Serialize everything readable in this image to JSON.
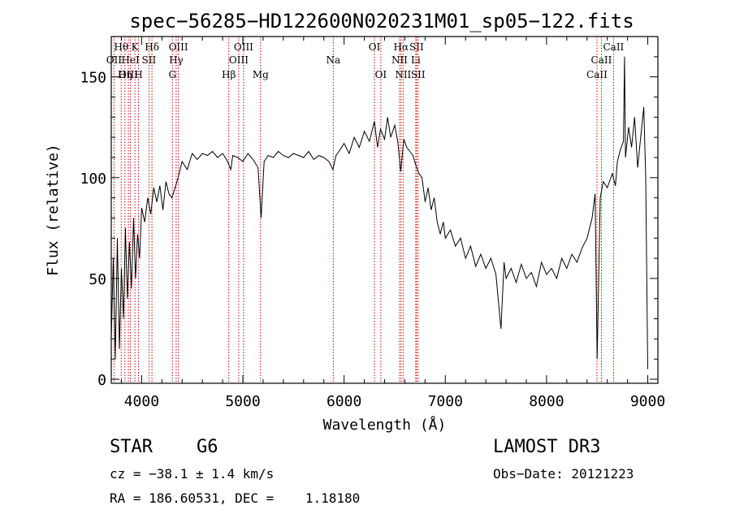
{
  "chart_data": {
    "type": "line",
    "title": "spec−56285−HD122600N020231M01_sp05−122.fits",
    "xlabel": "Wavelength (Å)",
    "ylabel": "Flux (relative)",
    "xlim": [
      3700,
      9100
    ],
    "ylim": [
      -2,
      170
    ],
    "x_ticks": [
      4000,
      5000,
      6000,
      7000,
      8000,
      9000
    ],
    "y_ticks": [
      0,
      50,
      100,
      150
    ],
    "grid": false,
    "line_color": "#000000",
    "marker_color": "#cc0000",
    "series": [
      {
        "name": "flux",
        "points": [
          [
            3700,
            20
          ],
          [
            3720,
            60
          ],
          [
            3740,
            10
          ],
          [
            3760,
            70
          ],
          [
            3780,
            15
          ],
          [
            3800,
            55
          ],
          [
            3820,
            30
          ],
          [
            3840,
            75
          ],
          [
            3860,
            40
          ],
          [
            3880,
            68
          ],
          [
            3900,
            45
          ],
          [
            3920,
            80
          ],
          [
            3940,
            50
          ],
          [
            3960,
            72
          ],
          [
            3980,
            60
          ],
          [
            4000,
            85
          ],
          [
            4030,
            78
          ],
          [
            4060,
            90
          ],
          [
            4090,
            82
          ],
          [
            4120,
            95
          ],
          [
            4150,
            88
          ],
          [
            4180,
            96
          ],
          [
            4210,
            84
          ],
          [
            4240,
            98
          ],
          [
            4270,
            92
          ],
          [
            4300,
            90
          ],
          [
            4330,
            95
          ],
          [
            4360,
            100
          ],
          [
            4400,
            108
          ],
          [
            4450,
            104
          ],
          [
            4500,
            112
          ],
          [
            4550,
            109
          ],
          [
            4600,
            112
          ],
          [
            4650,
            111
          ],
          [
            4700,
            113
          ],
          [
            4750,
            110
          ],
          [
            4800,
            112
          ],
          [
            4850,
            108
          ],
          [
            4880,
            104
          ],
          [
            4900,
            111
          ],
          [
            4950,
            110
          ],
          [
            5000,
            108
          ],
          [
            5050,
            112
          ],
          [
            5100,
            109
          ],
          [
            5150,
            105
          ],
          [
            5180,
            80
          ],
          [
            5210,
            108
          ],
          [
            5250,
            111
          ],
          [
            5300,
            110
          ],
          [
            5350,
            113
          ],
          [
            5400,
            111
          ],
          [
            5450,
            110
          ],
          [
            5500,
            112
          ],
          [
            5550,
            111
          ],
          [
            5600,
            110
          ],
          [
            5650,
            113
          ],
          [
            5700,
            109
          ],
          [
            5750,
            111
          ],
          [
            5800,
            110
          ],
          [
            5850,
            108
          ],
          [
            5890,
            104
          ],
          [
            5920,
            111
          ],
          [
            5950,
            113
          ],
          [
            6000,
            117
          ],
          [
            6050,
            112
          ],
          [
            6100,
            120
          ],
          [
            6150,
            115
          ],
          [
            6200,
            123
          ],
          [
            6250,
            118
          ],
          [
            6300,
            128
          ],
          [
            6330,
            115
          ],
          [
            6360,
            124
          ],
          [
            6400,
            119
          ],
          [
            6430,
            130
          ],
          [
            6460,
            120
          ],
          [
            6500,
            126
          ],
          [
            6530,
            118
          ],
          [
            6560,
            103
          ],
          [
            6590,
            119
          ],
          [
            6620,
            115
          ],
          [
            6650,
            113
          ],
          [
            6680,
            111
          ],
          [
            6710,
            106
          ],
          [
            6740,
            102
          ],
          [
            6770,
            100
          ],
          [
            6800,
            88
          ],
          [
            6830,
            95
          ],
          [
            6860,
            84
          ],
          [
            6890,
            90
          ],
          [
            6920,
            78
          ],
          [
            6950,
            72
          ],
          [
            6980,
            78
          ],
          [
            7000,
            70
          ],
          [
            7050,
            74
          ],
          [
            7100,
            66
          ],
          [
            7150,
            70
          ],
          [
            7200,
            60
          ],
          [
            7250,
            66
          ],
          [
            7300,
            56
          ],
          [
            7350,
            62
          ],
          [
            7400,
            55
          ],
          [
            7450,
            60
          ],
          [
            7500,
            52
          ],
          [
            7550,
            25
          ],
          [
            7580,
            58
          ],
          [
            7600,
            50
          ],
          [
            7650,
            55
          ],
          [
            7700,
            48
          ],
          [
            7750,
            57
          ],
          [
            7800,
            50
          ],
          [
            7850,
            53
          ],
          [
            7900,
            46
          ],
          [
            7950,
            58
          ],
          [
            8000,
            52
          ],
          [
            8050,
            55
          ],
          [
            8100,
            50
          ],
          [
            8150,
            60
          ],
          [
            8200,
            55
          ],
          [
            8250,
            62
          ],
          [
            8300,
            58
          ],
          [
            8350,
            65
          ],
          [
            8400,
            70
          ],
          [
            8450,
            80
          ],
          [
            8480,
            92
          ],
          [
            8500,
            10
          ],
          [
            8530,
            90
          ],
          [
            8560,
            98
          ],
          [
            8600,
            95
          ],
          [
            8650,
            102
          ],
          [
            8680,
            96
          ],
          [
            8700,
            108
          ],
          [
            8730,
            114
          ],
          [
            8760,
            118
          ],
          [
            8770,
            160
          ],
          [
            8780,
            110
          ],
          [
            8810,
            125
          ],
          [
            8840,
            115
          ],
          [
            8870,
            130
          ],
          [
            8900,
            105
          ],
          [
            8930,
            120
          ],
          [
            8960,
            135
          ],
          [
            8980,
            100
          ],
          [
            9000,
            5
          ]
        ]
      }
    ],
    "line_markers": [
      {
        "label": "Hθ",
        "x": 3798,
        "row": 1
      },
      {
        "label": "OII",
        "x": 3727,
        "row": 2
      },
      {
        "label": "OIII",
        "x": 3869,
        "row": 3
      },
      {
        "label": "K",
        "x": 3934,
        "row": 1
      },
      {
        "label": "HeI",
        "x": 3889,
        "row": 2
      },
      {
        "label": "Hη",
        "x": 3835,
        "row": 3
      },
      {
        "label": "SII",
        "x": 4072,
        "row": 2
      },
      {
        "label": "H",
        "x": 3969,
        "row": 3
      },
      {
        "label": "Hδ",
        "x": 4102,
        "row": 1
      },
      {
        "label": "OIII",
        "x": 4363,
        "row": 1
      },
      {
        "label": "Hγ",
        "x": 4341,
        "row": 2
      },
      {
        "label": "G",
        "x": 4304,
        "row": 3
      },
      {
        "label": "Hβ",
        "x": 4861,
        "row": 3
      },
      {
        "label": "OIII",
        "x": 5007,
        "row": 1
      },
      {
        "label": "OIII",
        "x": 4959,
        "row": 2
      },
      {
        "label": "Mg",
        "x": 5175,
        "row": 3
      },
      {
        "label": "Na",
        "x": 5893,
        "row": 2
      },
      {
        "label": "OI",
        "x": 6300,
        "row": 1
      },
      {
        "label": "OI",
        "x": 6363,
        "row": 3
      },
      {
        "label": "Hα",
        "x": 6563,
        "row": 1
      },
      {
        "label": "SII",
        "x": 6716,
        "row": 1
      },
      {
        "label": "NII",
        "x": 6548,
        "row": 2
      },
      {
        "label": "Li",
        "x": 6708,
        "row": 2
      },
      {
        "label": "NII",
        "x": 6583,
        "row": 3
      },
      {
        "label": "SII",
        "x": 6731,
        "row": 3
      },
      {
        "label": "CaII",
        "x": 8662,
        "row": 1
      },
      {
        "label": "CaII",
        "x": 8542,
        "row": 2
      },
      {
        "label": "CaII",
        "x": 8498,
        "row": 3
      }
    ]
  },
  "info": {
    "object_class": "STAR",
    "subclass": "G6",
    "survey": "LAMOST DR3",
    "cz": "cz = −38.1 ± 1.4 km/s",
    "obs_date": "Obs−Date: 20121223",
    "coords": "RA = 186.60531, DEC =    1.18180"
  }
}
